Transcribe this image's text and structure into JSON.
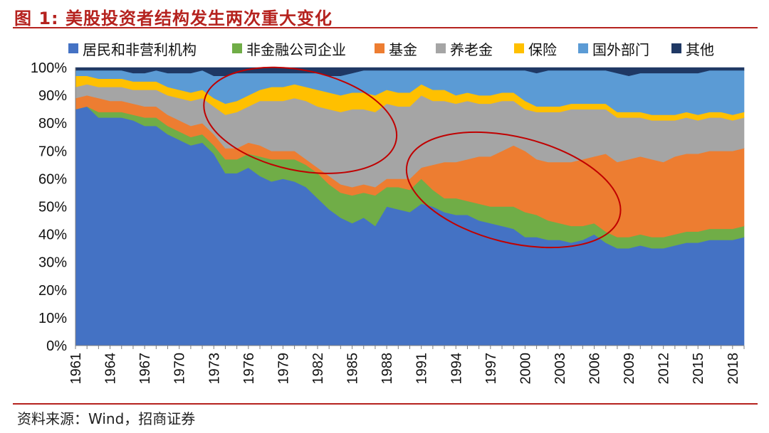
{
  "header": {
    "title": "图 1:  美股投资者结构发生两次重大变化"
  },
  "footer": {
    "source": "资料来源：Wind，招商证券"
  },
  "chart_data": {
    "type": "area",
    "stacked": true,
    "normalized": true,
    "x": [
      1961,
      1962,
      1963,
      1964,
      1965,
      1966,
      1967,
      1968,
      1969,
      1970,
      1971,
      1972,
      1973,
      1974,
      1975,
      1976,
      1977,
      1978,
      1979,
      1980,
      1981,
      1982,
      1983,
      1984,
      1985,
      1986,
      1987,
      1988,
      1989,
      1990,
      1991,
      1992,
      1993,
      1994,
      1995,
      1996,
      1997,
      1998,
      1999,
      2000,
      2001,
      2002,
      2003,
      2004,
      2005,
      2006,
      2007,
      2008,
      2009,
      2010,
      2011,
      2012,
      2013,
      2014,
      2015,
      2016,
      2017,
      2018,
      2019
    ],
    "x_tick_labels": [
      "1961",
      "1964",
      "1967",
      "1970",
      "1973",
      "1976",
      "1979",
      "1982",
      "1985",
      "1988",
      "1991",
      "1994",
      "1997",
      "2000",
      "2003",
      "2006",
      "2009",
      "2012",
      "2015",
      "2018"
    ],
    "y_tick_labels": [
      "0%",
      "10%",
      "20%",
      "30%",
      "40%",
      "50%",
      "60%",
      "70%",
      "80%",
      "90%",
      "100%"
    ],
    "ylim": [
      0,
      100
    ],
    "legend_position": "top",
    "series": [
      {
        "name": "居民和非营利机构",
        "color": "#4472c4",
        "values": [
          85,
          86,
          82,
          82,
          82,
          81,
          79,
          79,
          76,
          74,
          72,
          73,
          69,
          62,
          62,
          64,
          61,
          59,
          60,
          59,
          57,
          53,
          49,
          46,
          44,
          46,
          43,
          50,
          49,
          48,
          51,
          50,
          48,
          47,
          47,
          45,
          44,
          43,
          42,
          39,
          39,
          38,
          38,
          37,
          38,
          40,
          37,
          35,
          35,
          36,
          35,
          35,
          36,
          37,
          37,
          38,
          38,
          38,
          39
        ]
      },
      {
        "name": "非金融公司企业",
        "color": "#70ad47",
        "values": [
          0,
          0,
          2,
          2,
          2,
          2,
          3,
          3,
          3,
          3,
          3,
          3,
          3,
          5,
          5,
          5,
          7,
          8,
          7,
          8,
          8,
          9,
          9,
          9,
          10,
          9,
          11,
          7,
          8,
          8,
          9,
          6,
          5,
          6,
          5,
          6,
          6,
          7,
          8,
          9,
          8,
          7,
          6,
          6,
          5,
          4,
          4,
          4,
          4,
          4,
          4,
          4,
          4,
          4,
          4,
          4,
          4,
          4,
          4
        ]
      },
      {
        "name": "基金",
        "color": "#ed7d31",
        "values": [
          4,
          4,
          5,
          4,
          4,
          4,
          4,
          4,
          4,
          4,
          4,
          4,
          4,
          4,
          4,
          4,
          4,
          3,
          3,
          3,
          2,
          2,
          3,
          3,
          3,
          3,
          3,
          3,
          3,
          4,
          4,
          9,
          13,
          13,
          15,
          17,
          18,
          20,
          22,
          22,
          20,
          21,
          22,
          23,
          24,
          24,
          28,
          27,
          28,
          28,
          28,
          27,
          28,
          28,
          28,
          28,
          28,
          28,
          28
        ]
      },
      {
        "name": "养老金",
        "color": "#a5a5a5",
        "values": [
          4,
          4,
          4,
          5,
          5,
          5,
          6,
          6,
          7,
          8,
          9,
          9,
          10,
          12,
          13,
          13,
          16,
          18,
          18,
          19,
          21,
          22,
          24,
          26,
          28,
          27,
          27,
          27,
          26,
          26,
          26,
          23,
          22,
          21,
          21,
          19,
          19,
          18,
          16,
          15,
          17,
          18,
          18,
          19,
          18,
          17,
          16,
          16,
          15,
          14,
          14,
          15,
          13,
          13,
          12,
          12,
          12,
          11,
          11
        ]
      },
      {
        "name": "保险",
        "color": "#ffc000",
        "values": [
          4,
          3,
          3,
          3,
          3,
          3,
          3,
          3,
          3,
          3,
          3,
          3,
          3,
          4,
          4,
          4,
          4,
          5,
          5,
          5,
          5,
          6,
          6,
          6,
          6,
          6,
          6,
          5,
          5,
          5,
          4,
          4,
          4,
          3,
          3,
          3,
          3,
          3,
          3,
          3,
          2,
          2,
          2,
          2,
          2,
          2,
          2,
          2,
          2,
          2,
          2,
          2,
          2,
          2,
          2,
          2,
          2,
          2,
          2
        ]
      },
      {
        "name": "国外部门",
        "color": "#5b9bd5",
        "values": [
          2,
          2,
          3,
          3,
          3,
          3,
          3,
          4,
          5,
          6,
          7,
          7,
          8,
          10,
          10,
          8,
          6,
          5,
          5,
          4,
          5,
          6,
          6,
          7,
          7,
          8,
          9,
          7,
          8,
          8,
          5,
          7,
          7,
          9,
          8,
          9,
          9,
          8,
          8,
          11,
          12,
          13,
          13,
          12,
          12,
          12,
          12,
          14,
          13,
          14,
          15,
          15,
          15,
          14,
          15,
          15,
          15,
          16,
          15
        ]
      },
      {
        "name": "其他",
        "color": "#1f3864",
        "values": [
          1,
          1,
          1,
          1,
          1,
          2,
          2,
          1,
          2,
          2,
          2,
          1,
          3,
          3,
          2,
          2,
          2,
          2,
          2,
          2,
          2,
          2,
          3,
          3,
          2,
          1,
          1,
          1,
          1,
          1,
          1,
          1,
          1,
          1,
          1,
          1,
          1,
          1,
          1,
          1,
          2,
          1,
          1,
          1,
          1,
          1,
          1,
          2,
          3,
          2,
          2,
          2,
          2,
          2,
          2,
          1,
          1,
          1,
          1
        ]
      }
    ],
    "annotations": [
      {
        "shape": "ellipse",
        "color": "#c00000",
        "x_center": 1980.5,
        "y_center": 81,
        "x_radius": 8.5,
        "y_radius": 18
      },
      {
        "shape": "ellipse",
        "color": "#c00000",
        "x_center": 1999,
        "y_center": 56,
        "x_radius": 9.5,
        "y_radius": 19
      }
    ]
  }
}
